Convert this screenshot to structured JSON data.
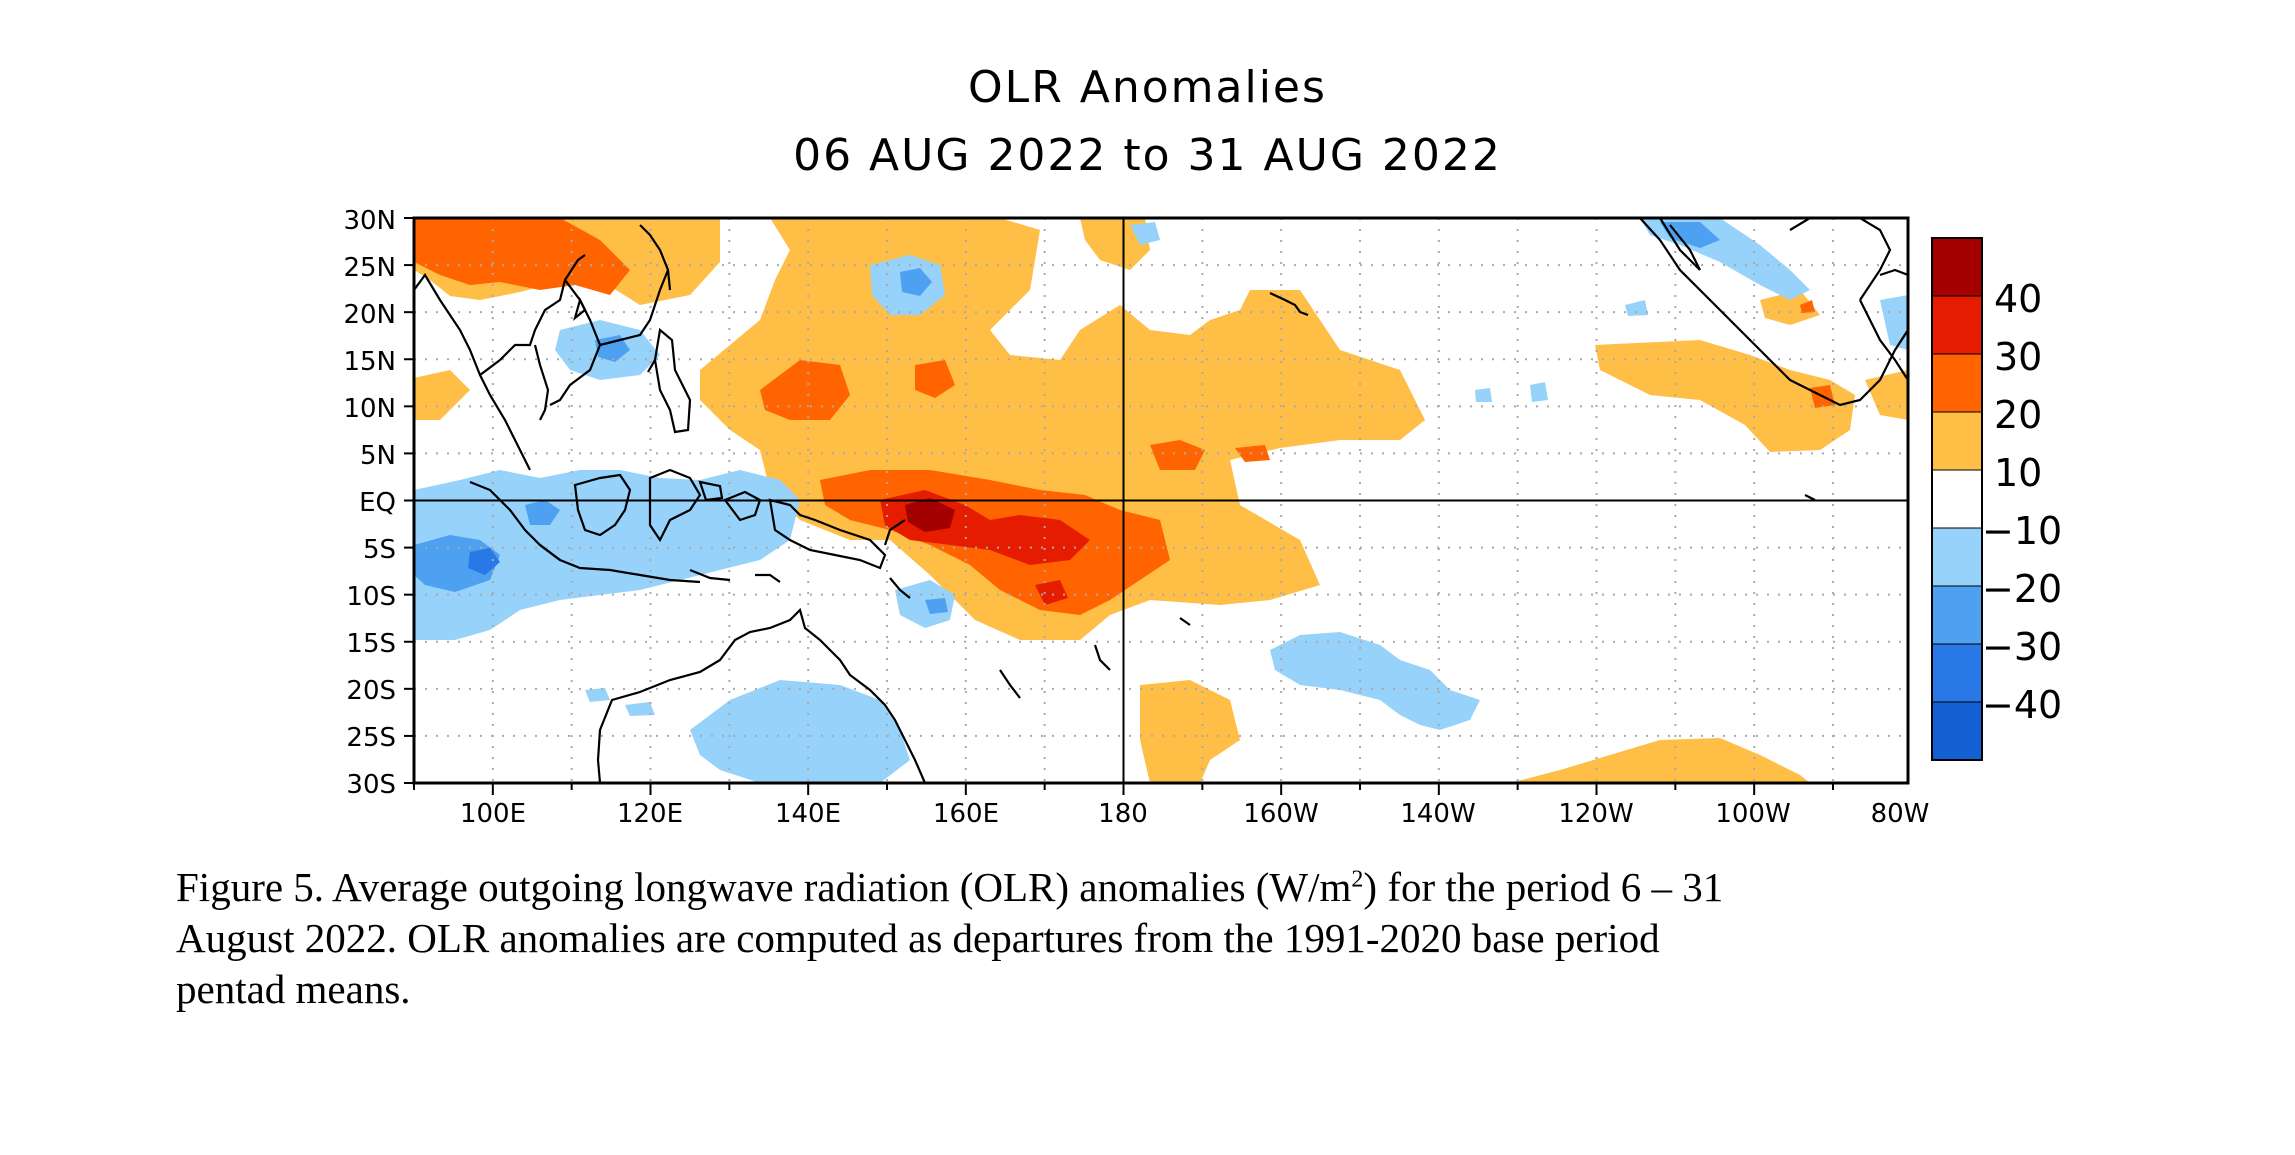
{
  "title": {
    "line1": "OLR Anomalies",
    "line2": "06 AUG 2022 to 31 AUG 2022"
  },
  "map": {
    "lat_labels": [
      "30N",
      "25N",
      "20N",
      "15N",
      "10N",
      "5N",
      "EQ",
      "5S",
      "10S",
      "15S",
      "20S",
      "25S",
      "30S"
    ],
    "lon_labels": [
      "100E",
      "120E",
      "140E",
      "160E",
      "180",
      "160W",
      "140W",
      "120W",
      "100W",
      "80W"
    ],
    "lon_range": [
      "90E",
      "80W"
    ],
    "lat_range": [
      "30S",
      "30N"
    ],
    "grid": "dotted",
    "reference_lines": [
      "EQ",
      "180"
    ]
  },
  "colorbar": {
    "labels": [
      "40",
      "30",
      "20",
      "10",
      "−10",
      "−20",
      "−30",
      "−40"
    ],
    "colors": [
      "#a50000",
      "#e61c00",
      "#ff6400",
      "#ffbe46",
      "#ffffff",
      "#96d2fa",
      "#4ea0f0",
      "#2878e6",
      "#1460d2"
    ]
  },
  "chart_data": {
    "type": "heatmap",
    "title": "OLR Anomalies",
    "subtitle": "06 AUG 2022 to 31 AUG 2022",
    "contour_levels": [
      -40,
      -30,
      -20,
      -10,
      10,
      20,
      30,
      40
    ],
    "units": "W/m2",
    "grid": true,
    "legend": "right colorbar",
    "features": [
      {
        "region": "western Pacific near 150E-175E, EQ to 10S",
        "anomaly": "+20 to +40"
      },
      {
        "region": "central Pacific 140E-160W, 10N-15S",
        "anomaly": "+10 to +20"
      },
      {
        "region": "Maritime Continent / eastern Indian Ocean, EQ-10S",
        "anomaly": "-10 to -30"
      },
      {
        "region": "South China Sea / Philippines near 15N",
        "anomaly": "-10 to -20"
      },
      {
        "region": "eastern Pacific 90W-130W, 5N-15N",
        "anomaly": "+10 to +20"
      },
      {
        "region": "South Pacific 140W-160W, 15S-25S",
        "anomaly": "-10 to -20"
      }
    ]
  },
  "caption": {
    "part1": "Figure 5. Average outgoing longwave radiation (OLR) anomalies (W/m",
    "sup": "2",
    "part2": ") for the period 6 – 31",
    "line2": "August 2022.  OLR anomalies are computed as departures from the 1991-2020 base period",
    "line3": "pentad means."
  }
}
